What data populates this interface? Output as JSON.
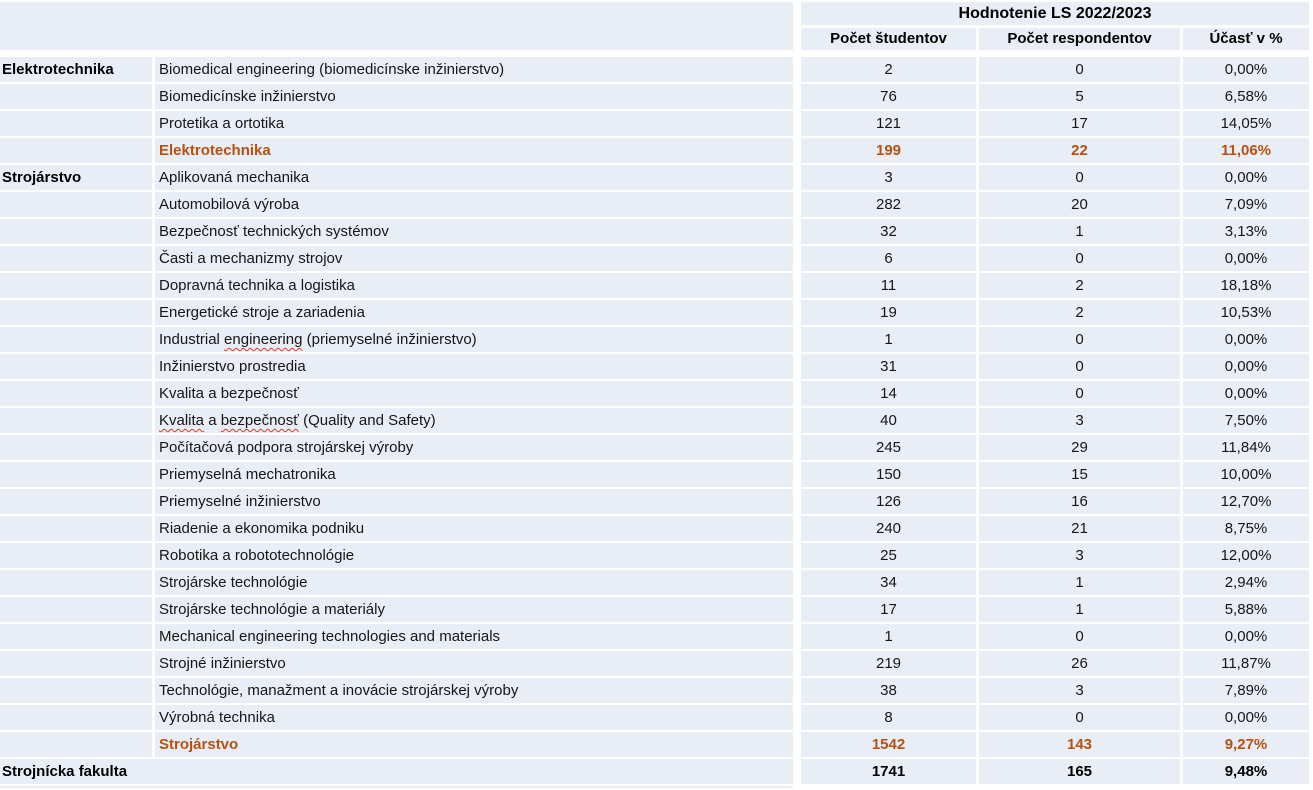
{
  "colors": {
    "row_bg": "#E9EDF5",
    "summary_text": "#B85110",
    "squiggle": "#E03A23"
  },
  "table": {
    "header": {
      "title": "Hodnotenie LS 2022/2023",
      "columns": [
        "Počet študentov",
        "Počet respondentov",
        "Účasť v %"
      ]
    },
    "groups": [
      {
        "name": "Elektrotechnika",
        "rows": [
          {
            "program": "Biomedical engineering (biomedicínske inžinierstvo)",
            "students": "2",
            "respondents": "0",
            "participation": "0,00%"
          },
          {
            "program": "Biomedicínske inžinierstvo",
            "students": "76",
            "respondents": "5",
            "participation": "6,58%"
          },
          {
            "program": "Protetika a ortotika",
            "students": "121",
            "respondents": "17",
            "participation": "14,05%"
          },
          {
            "program": "Elektrotechnika",
            "students": "199",
            "respondents": "22",
            "participation": "11,06%",
            "summary": true
          }
        ]
      },
      {
        "name": "Strojárstvo",
        "rows": [
          {
            "program": "Aplikovaná mechanika",
            "students": "3",
            "respondents": "0",
            "participation": "0,00%"
          },
          {
            "program": "Automobilová výroba",
            "students": "282",
            "respondents": "20",
            "participation": "7,09%"
          },
          {
            "program": "Bezpečnosť technických systémov",
            "students": "32",
            "respondents": "1",
            "participation": "3,13%"
          },
          {
            "program": "Časti a mechanizmy strojov",
            "students": "6",
            "respondents": "0",
            "participation": "0,00%"
          },
          {
            "program": "Dopravná technika a logistika",
            "students": "11",
            "respondents": "2",
            "participation": "18,18%"
          },
          {
            "program": "Energetické stroje a zariadenia",
            "students": "19",
            "respondents": "2",
            "participation": "10,53%"
          },
          {
            "program": "Industrial engineering (priemyselné inžinierstvo)",
            "students": "1",
            "respondents": "0",
            "participation": "0,00%",
            "misspelled": [
              "engineering"
            ]
          },
          {
            "program": "Inžinierstvo prostredia",
            "students": "31",
            "respondents": "0",
            "participation": "0,00%"
          },
          {
            "program": "Kvalita a bezpečnosť",
            "students": "14",
            "respondents": "0",
            "participation": "0,00%"
          },
          {
            "program": "Kvalita a bezpečnosť (Quality and Safety)",
            "students": "40",
            "respondents": "3",
            "participation": "7,50%",
            "misspelled": [
              "Kvalita",
              "bezpečnosť"
            ]
          },
          {
            "program": "Počítačová podpora strojárskej výroby",
            "students": "245",
            "respondents": "29",
            "participation": "11,84%"
          },
          {
            "program": "Priemyselná mechatronika",
            "students": "150",
            "respondents": "15",
            "participation": "10,00%"
          },
          {
            "program": "Priemyselné inžinierstvo",
            "students": "126",
            "respondents": "16",
            "participation": "12,70%"
          },
          {
            "program": "Riadenie a ekonomika podniku",
            "students": "240",
            "respondents": "21",
            "participation": "8,75%"
          },
          {
            "program": "Robotika a robototechnológie",
            "students": "25",
            "respondents": "3",
            "participation": "12,00%"
          },
          {
            "program": "Strojárske technológie",
            "students": "34",
            "respondents": "1",
            "participation": "2,94%"
          },
          {
            "program": "Strojárske technológie a materiály",
            "students": "17",
            "respondents": "1",
            "participation": "5,88%"
          },
          {
            "program": "Mechanical engineering technologies and materials",
            "students": "1",
            "respondents": "0",
            "participation": "0,00%"
          },
          {
            "program": "Strojné inžinierstvo",
            "students": "219",
            "respondents": "26",
            "participation": "11,87%"
          },
          {
            "program": "Technológie, manažment a inovácie strojárskej výroby",
            "students": "38",
            "respondents": "3",
            "participation": "7,89%"
          },
          {
            "program": "Výrobná technika",
            "students": "8",
            "respondents": "0",
            "participation": "0,00%"
          },
          {
            "program": "Strojárstvo",
            "students": "1542",
            "respondents": "143",
            "participation": "9,27%",
            "summary": true
          }
        ]
      }
    ],
    "total": {
      "label": "Strojnícka fakulta",
      "students": "1741",
      "respondents": "165",
      "participation": "9,48%"
    }
  }
}
